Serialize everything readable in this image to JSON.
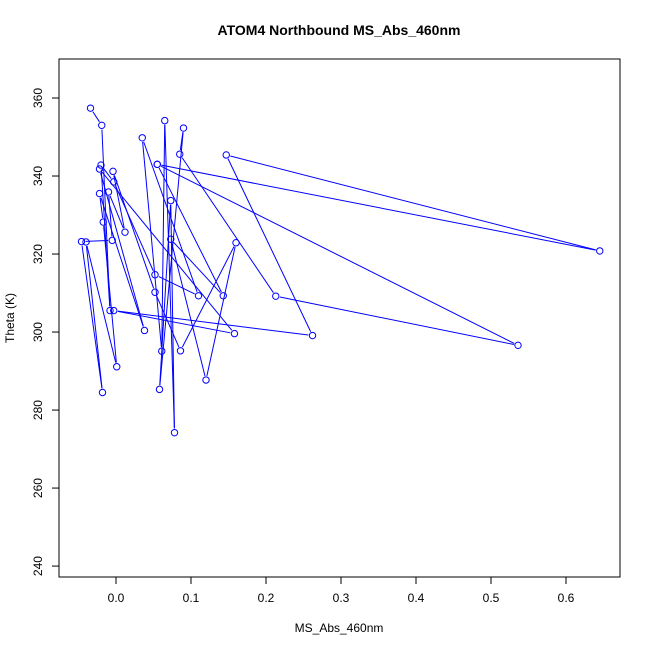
{
  "chart_data": {
    "type": "line",
    "title": "ATOM4 Northbound MS_Abs_460nm",
    "xlabel": "MS_Abs_460nm",
    "ylabel": "Theta (K)",
    "xlim": [
      -0.076,
      0.672
    ],
    "ylim": [
      237.2,
      370.0
    ],
    "x_ticks": [
      0.0,
      0.1,
      0.2,
      0.3,
      0.4,
      0.5,
      0.6
    ],
    "x_tick_labels": [
      "0.0",
      "0.1",
      "0.2",
      "0.3",
      "0.4",
      "0.5",
      "0.6"
    ],
    "y_ticks": [
      240,
      260,
      280,
      300,
      320,
      340,
      360
    ],
    "y_tick_labels": [
      "240",
      "260",
      "280",
      "300",
      "320",
      "340",
      "360"
    ],
    "grid": false,
    "series": [
      {
        "color": "#0000ff",
        "marker": "open-circle",
        "points": [
          [
            -0.034,
            357.4
          ],
          [
            -0.019,
            353.0
          ],
          [
            -0.008,
            305.5
          ],
          [
            -0.02,
            342.8
          ],
          [
            -0.003,
            338.5
          ],
          [
            0.052,
            314.7
          ],
          [
            0.11,
            309.3
          ],
          [
            0.035,
            349.8
          ],
          [
            0.061,
            295.1
          ],
          [
            0.065,
            354.2
          ],
          [
            0.078,
            274.2
          ],
          [
            0.073,
            333.7
          ],
          [
            0.058,
            285.3
          ],
          [
            0.09,
            352.3
          ],
          [
            0.085,
            345.6
          ],
          [
            0.213,
            309.2
          ],
          [
            0.536,
            296.6
          ],
          [
            0.055,
            343.0
          ],
          [
            0.645,
            320.8
          ],
          [
            0.147,
            345.4
          ],
          [
            0.262,
            299.1
          ],
          [
            -0.003,
            305.5
          ],
          [
            0.158,
            299.6
          ],
          [
            -0.022,
            341.8
          ],
          [
            0.038,
            300.4
          ],
          [
            -0.022,
            335.5
          ],
          [
            -0.017,
            328.2
          ],
          [
            0.001,
            291.1
          ],
          [
            -0.04,
            323.1
          ],
          [
            -0.018,
            284.5
          ],
          [
            -0.046,
            323.2
          ],
          [
            -0.005,
            323.5
          ],
          [
            -0.01,
            335.9
          ],
          [
            0.012,
            325.6
          ],
          [
            -0.004,
            341.2
          ],
          [
            0.052,
            310.2
          ],
          [
            0.086,
            295.2
          ],
          [
            0.16,
            322.9
          ],
          [
            0.12,
            287.7
          ],
          [
            0.073,
            323.8
          ],
          [
            0.143,
            309.3
          ],
          [
            0.055,
            343.0
          ]
        ]
      }
    ]
  }
}
